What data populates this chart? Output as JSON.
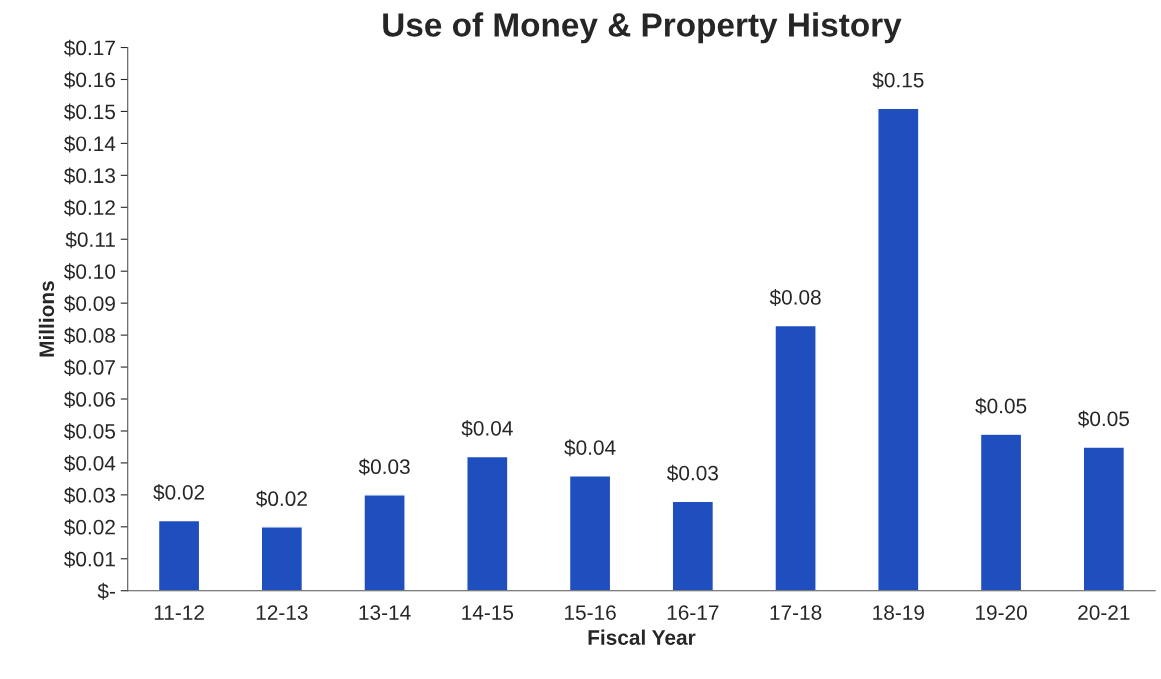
{
  "chart_data": {
    "type": "bar",
    "title": "Use of Money & Property History",
    "xlabel": "Fiscal Year",
    "ylabel": "Millions",
    "categories": [
      "11-12",
      "12-13",
      "13-14",
      "14-15",
      "15-16",
      "16-17",
      "17-18",
      "18-19",
      "19-20",
      "20-21"
    ],
    "values": [
      0.022,
      0.02,
      0.03,
      0.042,
      0.036,
      0.028,
      0.083,
      0.151,
      0.049,
      0.045
    ],
    "value_labels": [
      "$0.02",
      "$0.02",
      "$0.03",
      "$0.04",
      "$0.04",
      "$0.03",
      "$0.08",
      "$0.15",
      "$0.05",
      "$0.05"
    ],
    "color": "#1f4fbf",
    "ylim": [
      0,
      0.17
    ],
    "yticks": [
      {
        "value": 0,
        "label": "$-"
      },
      {
        "value": 0.01,
        "label": "$0.01"
      },
      {
        "value": 0.02,
        "label": "$0.02"
      },
      {
        "value": 0.03,
        "label": "$0.03"
      },
      {
        "value": 0.04,
        "label": "$0.04"
      },
      {
        "value": 0.05,
        "label": "$0.05"
      },
      {
        "value": 0.06,
        "label": "$0.06"
      },
      {
        "value": 0.07,
        "label": "$0.07"
      },
      {
        "value": 0.08,
        "label": "$0.08"
      },
      {
        "value": 0.09,
        "label": "$0.09"
      },
      {
        "value": 0.1,
        "label": "$0.10"
      },
      {
        "value": 0.11,
        "label": "$0.11"
      },
      {
        "value": 0.12,
        "label": "$0.12"
      },
      {
        "value": 0.13,
        "label": "$0.13"
      },
      {
        "value": 0.14,
        "label": "$0.14"
      },
      {
        "value": 0.15,
        "label": "$0.15"
      },
      {
        "value": 0.16,
        "label": "$0.16"
      },
      {
        "value": 0.17,
        "label": "$0.17"
      }
    ],
    "grid": false,
    "legend": false
  }
}
